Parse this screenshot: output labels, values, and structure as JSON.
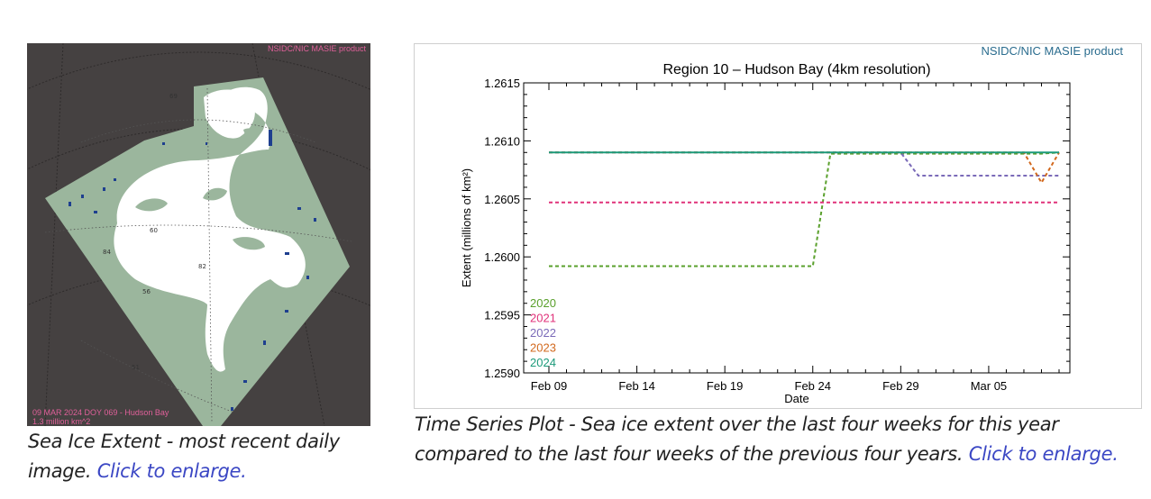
{
  "map": {
    "credit": "NSIDC/NIC MASIE product",
    "date_line": "09 MAR 2024  DOY 069 - Hudson Bay",
    "area_line": "1.3 million km^2",
    "grid_labels": [
      "69",
      "60",
      "84",
      "82",
      "56",
      "51"
    ],
    "colors": {
      "background": "#454141",
      "land": "#9bb69d",
      "ice": "#ffffff",
      "open_water": "#1e3f8f",
      "credit_text": "#e0609a"
    }
  },
  "captions": {
    "left_text": "Sea Ice Extent - most recent daily image.",
    "left_link": "Click to enlarge.",
    "right_text": "Time Series Plot - Sea ice extent over the last four weeks for this year compared to the last four weeks of the previous four years.",
    "right_link": "Click to enlarge."
  },
  "plot": {
    "credit": "NSIDC/NIC MASIE product"
  },
  "chart_data": {
    "type": "line",
    "title": "Region 10 – Hudson Bay (4km resolution)",
    "xlabel": "Date",
    "ylabel": "Extent (millions of km²)",
    "x_tick_labels": [
      "Feb 09",
      "Feb 14",
      "Feb 19",
      "Feb 24",
      "Feb 29",
      "Mar 05"
    ],
    "y_tick_labels": [
      "1.2590",
      "1.2595",
      "1.2600",
      "1.2605",
      "1.2610",
      "1.2615"
    ],
    "ylim": [
      1.259,
      1.2615
    ],
    "x": [
      "Feb 09",
      "Feb 10",
      "Feb 11",
      "Feb 12",
      "Feb 13",
      "Feb 14",
      "Feb 15",
      "Feb 16",
      "Feb 17",
      "Feb 18",
      "Feb 19",
      "Feb 20",
      "Feb 21",
      "Feb 22",
      "Feb 23",
      "Feb 24",
      "Feb 25",
      "Feb 26",
      "Feb 27",
      "Feb 28",
      "Feb 29",
      "Mar 01",
      "Mar 02",
      "Mar 03",
      "Mar 04",
      "Mar 05",
      "Mar 06",
      "Mar 07",
      "Mar 08",
      "Mar 09"
    ],
    "xlim_index": [
      0,
      29
    ],
    "legend_position": "bottom-left",
    "series": [
      {
        "name": "2020",
        "color": "#5aa02c",
        "style": "dashed",
        "values": [
          1.25992,
          1.25992,
          1.25992,
          1.25992,
          1.25992,
          1.25992,
          1.25992,
          1.25992,
          1.25992,
          1.25992,
          1.25992,
          1.25992,
          1.25992,
          1.25992,
          1.25992,
          1.25992,
          1.26089,
          1.26089,
          1.26089,
          1.26089,
          1.26089,
          1.26089,
          1.26089,
          1.26089,
          1.26089,
          1.26089,
          1.26089,
          1.26089,
          1.26089,
          1.2609
        ]
      },
      {
        "name": "2021",
        "color": "#e0327a",
        "style": "dashed",
        "values": [
          1.26047,
          1.26047,
          1.26047,
          1.26047,
          1.26047,
          1.26047,
          1.26047,
          1.26047,
          1.26047,
          1.26047,
          1.26047,
          1.26047,
          1.26047,
          1.26047,
          1.26047,
          1.26047,
          1.26047,
          1.26047,
          1.26047,
          1.26047,
          1.26047,
          1.26047,
          1.26047,
          1.26047,
          1.26047,
          1.26047,
          1.26047,
          1.26047,
          1.26047,
          1.26047
        ]
      },
      {
        "name": "2022",
        "color": "#7a6ab8",
        "style": "dashed",
        "values": [
          1.2609,
          1.2609,
          1.2609,
          1.2609,
          1.2609,
          1.2609,
          1.2609,
          1.2609,
          1.2609,
          1.2609,
          1.2609,
          1.2609,
          1.2609,
          1.2609,
          1.2609,
          1.2609,
          1.2609,
          1.2609,
          1.2609,
          1.2609,
          1.2609,
          1.2607,
          1.2607,
          1.2607,
          1.2607,
          1.2607,
          1.2607,
          1.2607,
          1.2607,
          1.2607
        ]
      },
      {
        "name": "2023",
        "color": "#d2691e",
        "style": "dashed",
        "values": [
          1.2609,
          1.2609,
          1.2609,
          1.2609,
          1.2609,
          1.2609,
          1.2609,
          1.2609,
          1.2609,
          1.2609,
          1.2609,
          1.2609,
          1.2609,
          1.2609,
          1.2609,
          1.2609,
          1.2609,
          1.2609,
          1.2609,
          1.2609,
          1.2609,
          1.2609,
          1.2609,
          1.2609,
          1.2609,
          1.2609,
          1.2609,
          1.2609,
          1.26064,
          1.2609
        ]
      },
      {
        "name": "2024",
        "color": "#1c9a7a",
        "style": "solid",
        "values": [
          1.2609,
          1.2609,
          1.2609,
          1.2609,
          1.2609,
          1.2609,
          1.2609,
          1.2609,
          1.2609,
          1.2609,
          1.2609,
          1.2609,
          1.2609,
          1.2609,
          1.2609,
          1.2609,
          1.2609,
          1.2609,
          1.2609,
          1.2609,
          1.2609,
          1.2609,
          1.2609,
          1.2609,
          1.2609,
          1.2609,
          1.2609,
          1.2609,
          1.2609,
          1.2609
        ]
      }
    ]
  }
}
